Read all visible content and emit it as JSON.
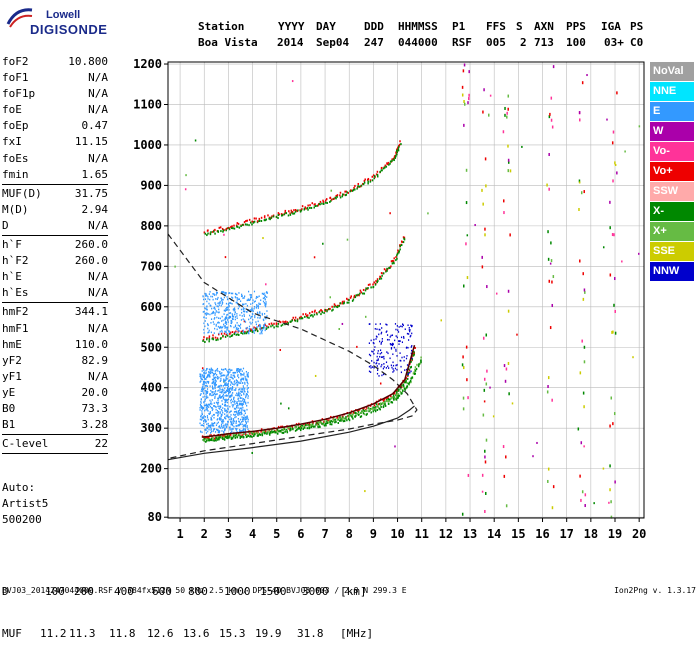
{
  "logo": {
    "brand": "Lowell",
    "product": "DIGISONDE"
  },
  "header": {
    "row1": [
      "Station",
      "YYYY",
      "DAY",
      "DDD",
      "HHMMSS",
      "P1",
      "FFS",
      "S",
      "AXN",
      "PPS",
      "IGA",
      "PS"
    ],
    "row2": [
      "Boa Vista",
      "2014",
      "Sep04",
      "247",
      "044000",
      "RSF",
      "005",
      "2",
      "713",
      "100",
      "03+",
      "C0"
    ]
  },
  "params": [
    {
      "name": "foF2",
      "value": "10.800"
    },
    {
      "name": "foF1",
      "value": "N/A"
    },
    {
      "name": "foF1p",
      "value": "N/A"
    },
    {
      "name": "foE",
      "value": "N/A"
    },
    {
      "name": "foEp",
      "value": "0.47"
    },
    {
      "name": "fxI",
      "value": "11.15"
    },
    {
      "name": "foEs",
      "value": "N/A"
    },
    {
      "name": "fmin",
      "value": "1.65"
    },
    {
      "sep": true
    },
    {
      "name": "MUF(D)",
      "value": "31.75"
    },
    {
      "name": "M(D)",
      "value": "2.94"
    },
    {
      "name": "D",
      "value": "N/A"
    },
    {
      "sep": true
    },
    {
      "name": "h`F",
      "value": "260.0"
    },
    {
      "name": "h`F2",
      "value": "260.0"
    },
    {
      "name": "h`E",
      "value": "N/A"
    },
    {
      "name": "h`Es",
      "value": "N/A"
    },
    {
      "sep": true
    },
    {
      "name": "hmF2",
      "value": "344.1"
    },
    {
      "name": "hmF1",
      "value": "N/A"
    },
    {
      "name": "hmE",
      "value": "110.0"
    },
    {
      "name": "yF2",
      "value": "82.9"
    },
    {
      "name": "yF1",
      "value": "N/A"
    },
    {
      "name": "yE",
      "value": "20.0"
    },
    {
      "name": "B0",
      "value": "73.3"
    },
    {
      "name": "B1",
      "value": "3.28"
    },
    {
      "sep": true
    },
    {
      "name": "C-level",
      "value": "22"
    },
    {
      "sep": true
    }
  ],
  "auto": {
    "line1": "Auto:",
    "line2": "Artist5",
    "line3": "500200"
  },
  "legend": [
    {
      "label": "NoVal",
      "color": "#a0a0a0"
    },
    {
      "label": "NNE",
      "color": "#00e5ff"
    },
    {
      "label": "E",
      "color": "#3399ff"
    },
    {
      "label": "W",
      "color": "#aa00aa"
    },
    {
      "label": "Vo-",
      "color": "#ff3399"
    },
    {
      "label": "Vo+",
      "color": "#ee0000"
    },
    {
      "label": "SSW",
      "color": "#ffaaaa"
    },
    {
      "label": "X-",
      "color": "#008800"
    },
    {
      "label": "X+",
      "color": "#66bb44"
    },
    {
      "label": "SSE",
      "color": "#cccc00"
    },
    {
      "label": "NNW",
      "color": "#0000cc"
    }
  ],
  "muf_table": {
    "d_label": "D",
    "distances": [
      "100",
      "200",
      "400",
      "600",
      "800",
      "1000",
      "1500",
      "3000"
    ],
    "d_unit": "[km]",
    "muf_label": "MUF",
    "mufs": [
      "11.2",
      "11.3",
      "11.8",
      "12.6",
      "13.6",
      "15.3",
      "19.9",
      "31.8"
    ],
    "muf_unit": "[MHz]"
  },
  "footer": {
    "info": "BVJ03_2014247044000.RSF / 384fx512h 50 kHz 2.5 km / DPS-4D BVJ03 003 / 2.8 N 299.3 E",
    "version": "Ion2Png v. 1.3.17"
  },
  "chart_data": {
    "type": "scatter",
    "xlim": [
      0.5,
      20.2
    ],
    "ylim": [
      78,
      1205
    ],
    "xticks": [
      1,
      2,
      3,
      4,
      5,
      6,
      7,
      8,
      9,
      10,
      11,
      12,
      13,
      14,
      15,
      16,
      17,
      18,
      19,
      20
    ],
    "yticks": [
      80,
      200,
      300,
      400,
      500,
      600,
      700,
      800,
      900,
      1000,
      1100,
      1200
    ],
    "grid": true,
    "traces": [
      {
        "name": "F2 O-trace",
        "series": "Vo+",
        "x": [
          1.9,
          2.5,
          3,
          4,
          5,
          6,
          7,
          8,
          9,
          9.8,
          10.3,
          10.7
        ],
        "y": [
          278,
          282,
          286,
          292,
          300,
          310,
          322,
          338,
          360,
          385,
          420,
          505
        ]
      },
      {
        "name": "F2 X-trace",
        "series": "X+",
        "x": [
          2.0,
          3,
          4,
          5,
          6,
          7,
          8,
          9,
          9.8,
          10.4,
          11.0
        ],
        "y": [
          277,
          284,
          290,
          297,
          305,
          316,
          330,
          350,
          375,
          410,
          480
        ]
      },
      {
        "name": "2F2 multiple",
        "series": "Vo+",
        "x": [
          1.9,
          3,
          4,
          5,
          6,
          7,
          8,
          9,
          9.8,
          10.3
        ],
        "y": [
          522,
          535,
          548,
          562,
          578,
          596,
          622,
          660,
          715,
          780
        ]
      },
      {
        "name": "3F2 multiple",
        "series": "Vo+",
        "x": [
          2.0,
          3,
          4,
          5,
          6,
          7,
          8,
          9,
          9.8,
          10.1
        ],
        "y": [
          785,
          800,
          815,
          830,
          845,
          865,
          890,
          925,
          970,
          1010
        ]
      },
      {
        "name": "scatter spread E",
        "series": "E",
        "x": [
          1.8,
          3.8
        ],
        "y": [
          290,
          450
        ]
      },
      {
        "name": "scatter spread E",
        "series": "E",
        "x": [
          1.9,
          4.6
        ],
        "y": [
          535,
          640
        ]
      },
      {
        "name": "spread NNW",
        "series": "NNW",
        "x": [
          8.8,
          10.6
        ],
        "y": [
          430,
          560
        ]
      }
    ],
    "profile_curve": {
      "x": [
        0.5,
        2,
        4,
        6,
        8,
        9,
        9.8,
        10.4,
        10.8,
        10.6,
        10.0,
        9,
        8,
        6,
        4,
        2,
        0.5
      ],
      "y": [
        780,
        660,
        585,
        545,
        490,
        455,
        420,
        385,
        345,
        330,
        320,
        310,
        298,
        280,
        262,
        244,
        225
      ]
    },
    "model_curve": {
      "x": [
        0.5,
        2,
        4,
        6,
        8,
        9,
        10,
        10.5,
        10.7
      ],
      "y": [
        222,
        238,
        252,
        268,
        290,
        305,
        325,
        345,
        355
      ]
    }
  }
}
